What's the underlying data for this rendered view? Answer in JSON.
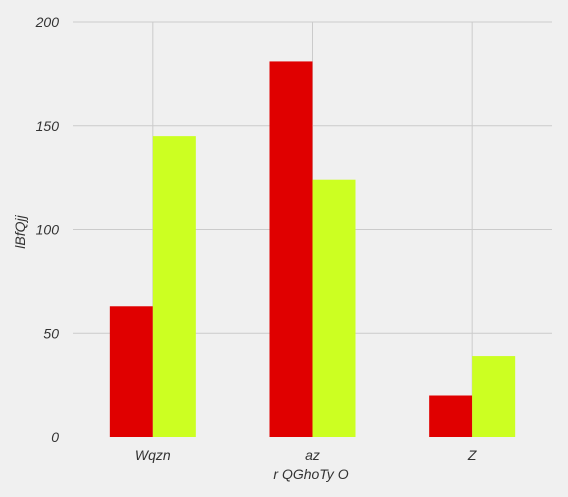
{
  "chart_data": {
    "type": "bar",
    "title": "",
    "xlabel": "r  QGhoTy  O",
    "ylabel": "lBfQjj",
    "categories": [
      "Wqzn",
      "az",
      "Z"
    ],
    "series": [
      {
        "values": [
          63,
          181,
          20
        ],
        "color": "#e00000"
      },
      {
        "values": [
          145,
          124,
          39
        ],
        "color": "#ccff22"
      }
    ],
    "ylim": [
      0,
      200
    ],
    "yticks": [
      0,
      50,
      100,
      150,
      200
    ],
    "grid": true,
    "background": "#f0f0f0"
  }
}
